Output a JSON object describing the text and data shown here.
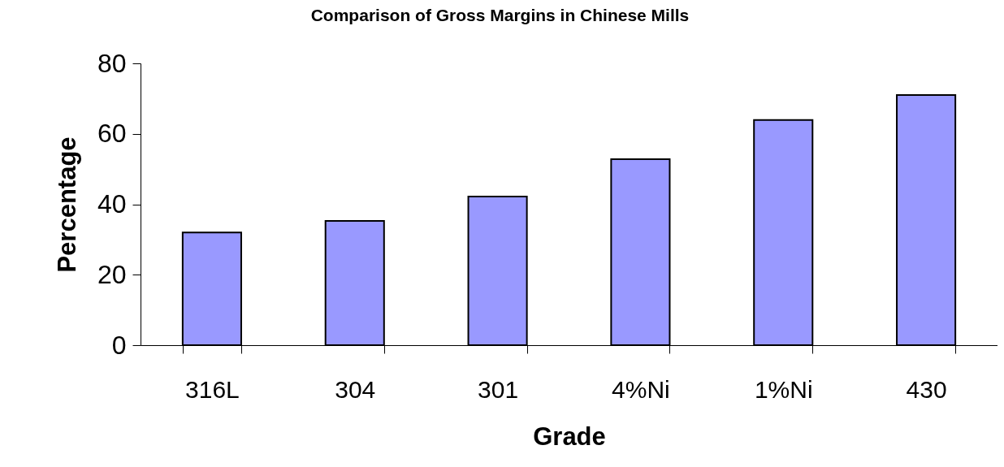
{
  "chart_data": {
    "type": "bar",
    "title": "Comparison of Gross Margins in Chinese Mills",
    "xlabel": "Grade",
    "ylabel": "Percentage",
    "categories": [
      "316L",
      "304",
      "301",
      "4%Ni",
      "1%Ni",
      "430"
    ],
    "values": [
      32,
      35.3,
      42.2,
      52.8,
      63.9,
      71
    ],
    "color": "#9999ff",
    "ylim": [
      0,
      80
    ],
    "yticks": [
      0,
      20,
      40,
      60,
      80
    ],
    "grid": false
  }
}
